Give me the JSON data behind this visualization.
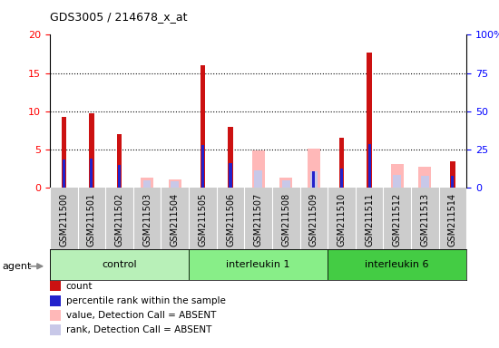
{
  "title": "GDS3005 / 214678_x_at",
  "samples": [
    "GSM211500",
    "GSM211501",
    "GSM211502",
    "GSM211503",
    "GSM211504",
    "GSM211505",
    "GSM211506",
    "GSM211507",
    "GSM211508",
    "GSM211509",
    "GSM211510",
    "GSM211511",
    "GSM211512",
    "GSM211513",
    "GSM211514"
  ],
  "count": [
    9.3,
    9.8,
    7.0,
    0,
    0,
    16.0,
    8.0,
    0,
    0,
    0,
    6.5,
    17.7,
    0,
    0,
    3.5
  ],
  "percentile": [
    3.7,
    3.8,
    3.0,
    0,
    0,
    5.6,
    3.2,
    0,
    0,
    2.2,
    2.5,
    5.7,
    0,
    0,
    1.6
  ],
  "absent_value": [
    0,
    0,
    0,
    1.4,
    1.1,
    0,
    0,
    4.9,
    1.4,
    5.1,
    0,
    0,
    3.1,
    2.8,
    0
  ],
  "absent_rank": [
    0,
    0,
    0,
    1.0,
    0.9,
    0,
    0,
    2.3,
    1.0,
    2.2,
    0,
    0,
    1.7,
    1.6,
    0
  ],
  "groups": [
    {
      "label": "control",
      "start": 0,
      "end": 5,
      "color": "#b8f0b8"
    },
    {
      "label": "interleukin 1",
      "start": 5,
      "end": 10,
      "color": "#88ee88"
    },
    {
      "label": "interleukin 6",
      "start": 10,
      "end": 15,
      "color": "#44cc44"
    }
  ],
  "ylim_left": [
    0,
    20
  ],
  "ylim_right": [
    0,
    100
  ],
  "yticks_left": [
    0,
    5,
    10,
    15,
    20
  ],
  "yticks_right": [
    0,
    25,
    50,
    75,
    100
  ],
  "ytick_labels_right": [
    "0",
    "25",
    "50",
    "75",
    "100%"
  ],
  "color_count": "#cc1111",
  "color_percentile": "#2222cc",
  "color_absent_value": "#ffb8b8",
  "color_absent_rank": "#c8c8e8",
  "bar_bg_color": "#cccccc",
  "label_bg_color": "#cccccc",
  "legend_items": [
    {
      "label": "count",
      "color": "#cc1111"
    },
    {
      "label": "percentile rank within the sample",
      "color": "#2222cc"
    },
    {
      "label": "value, Detection Call = ABSENT",
      "color": "#ffb8b8"
    },
    {
      "label": "rank, Detection Call = ABSENT",
      "color": "#c8c8e8"
    }
  ]
}
